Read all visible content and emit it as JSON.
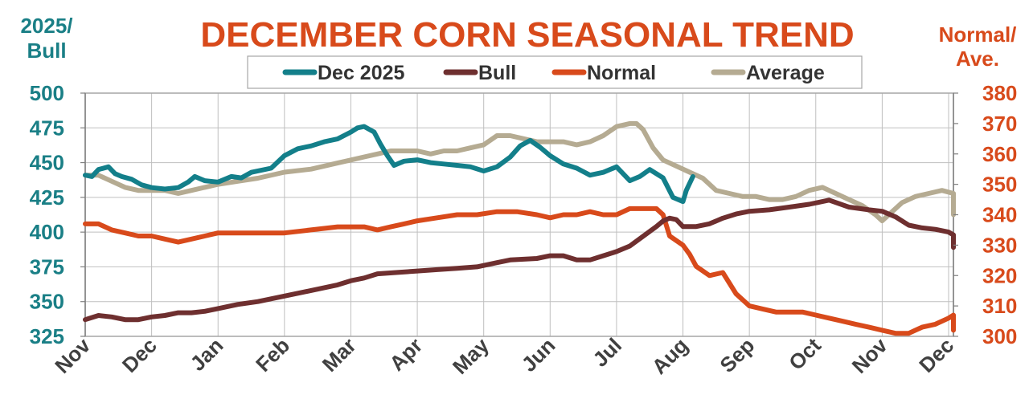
{
  "chart_data": {
    "type": "line",
    "title": "DECEMBER CORN SEASONAL TREND",
    "left_axis_title": [
      "2025/",
      "Bull"
    ],
    "right_axis_title": [
      "Normal/",
      "Ave."
    ],
    "left_ylim": [
      325,
      500
    ],
    "right_ylim": [
      300,
      380
    ],
    "left_ticks": [
      "500",
      "475",
      "450",
      "425",
      "400",
      "375",
      "350",
      "325"
    ],
    "right_ticks": [
      "380",
      "370",
      "360",
      "350",
      "340",
      "330",
      "320",
      "310",
      "300"
    ],
    "x_ticks": [
      "Nov",
      "Dec",
      "Jan",
      "Feb",
      "Mar",
      "Apr",
      "May",
      "Jun",
      "Jul",
      "Aug",
      "Sep",
      "Oct",
      "Nov",
      "Dec"
    ],
    "x_unit": "month index (0 = Nov start, 13 = Dec of following year)",
    "grid": true,
    "legend_position": "top",
    "colors": {
      "left_axis": "#1a7f86",
      "right_axis": "#d84a1b",
      "title": "#d84a1b",
      "grid": "#bfbfbf"
    },
    "series": [
      {
        "name": "Dec 2025",
        "axis": "left",
        "color": "#137f8a",
        "points": [
          [
            0,
            441
          ],
          [
            0.1,
            440
          ],
          [
            0.2,
            445
          ],
          [
            0.35,
            447
          ],
          [
            0.45,
            442
          ],
          [
            0.55,
            440
          ],
          [
            0.7,
            438
          ],
          [
            0.85,
            434
          ],
          [
            1.0,
            432
          ],
          [
            1.2,
            431
          ],
          [
            1.4,
            432
          ],
          [
            1.55,
            436
          ],
          [
            1.65,
            440
          ],
          [
            1.8,
            437
          ],
          [
            2.0,
            436
          ],
          [
            2.2,
            440
          ],
          [
            2.35,
            439
          ],
          [
            2.5,
            443
          ],
          [
            2.8,
            446
          ],
          [
            3.0,
            455
          ],
          [
            3.2,
            460
          ],
          [
            3.4,
            462
          ],
          [
            3.6,
            465
          ],
          [
            3.8,
            467
          ],
          [
            4.0,
            472
          ],
          [
            4.1,
            475
          ],
          [
            4.2,
            476
          ],
          [
            4.35,
            472
          ],
          [
            4.45,
            463
          ],
          [
            4.55,
            455
          ],
          [
            4.65,
            448
          ],
          [
            4.8,
            451
          ],
          [
            5.0,
            452
          ],
          [
            5.2,
            450
          ],
          [
            5.4,
            449
          ],
          [
            5.6,
            448
          ],
          [
            5.8,
            447
          ],
          [
            6.0,
            444
          ],
          [
            6.2,
            447
          ],
          [
            6.4,
            454
          ],
          [
            6.55,
            462
          ],
          [
            6.7,
            466
          ],
          [
            6.85,
            461
          ],
          [
            7.0,
            455
          ],
          [
            7.2,
            449
          ],
          [
            7.4,
            446
          ],
          [
            7.6,
            441
          ],
          [
            7.8,
            443
          ],
          [
            8.0,
            447
          ],
          [
            8.2,
            437
          ],
          [
            8.35,
            440
          ],
          [
            8.5,
            445
          ],
          [
            8.7,
            439
          ],
          [
            8.85,
            425
          ],
          [
            9.0,
            422
          ],
          [
            9.05,
            430
          ],
          [
            9.15,
            440
          ]
        ]
      },
      {
        "name": "Bull",
        "axis": "left",
        "color": "#6e2f2f",
        "points": [
          [
            0,
            337
          ],
          [
            0.2,
            340
          ],
          [
            0.4,
            339
          ],
          [
            0.6,
            337
          ],
          [
            0.8,
            337
          ],
          [
            1.0,
            339
          ],
          [
            1.2,
            340
          ],
          [
            1.4,
            342
          ],
          [
            1.6,
            342
          ],
          [
            1.8,
            343
          ],
          [
            2.0,
            345
          ],
          [
            2.3,
            348
          ],
          [
            2.6,
            350
          ],
          [
            3.0,
            354
          ],
          [
            3.4,
            358
          ],
          [
            3.8,
            362
          ],
          [
            4.0,
            365
          ],
          [
            4.2,
            367
          ],
          [
            4.4,
            370
          ],
          [
            4.7,
            371
          ],
          [
            5.0,
            372
          ],
          [
            5.3,
            373
          ],
          [
            5.6,
            374
          ],
          [
            5.9,
            375
          ],
          [
            6.0,
            376
          ],
          [
            6.2,
            378
          ],
          [
            6.4,
            380
          ],
          [
            6.8,
            381
          ],
          [
            7.0,
            383
          ],
          [
            7.2,
            383
          ],
          [
            7.4,
            380
          ],
          [
            7.6,
            380
          ],
          [
            7.8,
            383
          ],
          [
            8.0,
            386
          ],
          [
            8.2,
            390
          ],
          [
            8.4,
            397
          ],
          [
            8.6,
            404
          ],
          [
            8.7,
            408
          ],
          [
            8.8,
            410
          ],
          [
            8.9,
            409
          ],
          [
            9.0,
            404
          ],
          [
            9.2,
            404
          ],
          [
            9.4,
            406
          ],
          [
            9.6,
            410
          ],
          [
            9.8,
            413
          ],
          [
            10.0,
            415
          ],
          [
            10.3,
            416
          ],
          [
            10.6,
            418
          ],
          [
            10.9,
            420
          ],
          [
            11.2,
            423
          ],
          [
            11.5,
            418
          ],
          [
            11.8,
            416
          ],
          [
            12.0,
            415
          ],
          [
            12.2,
            411
          ],
          [
            12.4,
            405
          ],
          [
            12.6,
            403
          ],
          [
            12.8,
            402
          ],
          [
            13.0,
            400
          ],
          [
            13.2,
            398
          ],
          [
            13.4,
            395
          ],
          [
            13.6,
            393
          ],
          [
            13.8,
            392
          ],
          [
            14.0,
            390
          ],
          [
            14.2,
            389
          ]
        ]
      },
      {
        "name": "Normal",
        "axis": "right",
        "color": "#d84a1b",
        "points": [
          [
            0,
            337
          ],
          [
            0.2,
            337
          ],
          [
            0.4,
            335
          ],
          [
            0.6,
            334
          ],
          [
            0.8,
            333
          ],
          [
            1.0,
            333
          ],
          [
            1.2,
            332
          ],
          [
            1.4,
            331
          ],
          [
            1.6,
            332
          ],
          [
            1.8,
            333
          ],
          [
            2.0,
            334
          ],
          [
            2.3,
            334
          ],
          [
            2.6,
            334
          ],
          [
            3.0,
            334
          ],
          [
            3.4,
            335
          ],
          [
            3.8,
            336
          ],
          [
            4.0,
            336
          ],
          [
            4.2,
            336
          ],
          [
            4.4,
            335
          ],
          [
            4.6,
            336
          ],
          [
            4.8,
            337
          ],
          [
            5.0,
            338
          ],
          [
            5.3,
            339
          ],
          [
            5.6,
            340
          ],
          [
            5.9,
            340
          ],
          [
            6.2,
            341
          ],
          [
            6.5,
            341
          ],
          [
            6.8,
            340
          ],
          [
            7.0,
            339
          ],
          [
            7.2,
            340
          ],
          [
            7.4,
            340
          ],
          [
            7.6,
            341
          ],
          [
            7.8,
            340
          ],
          [
            8.0,
            340
          ],
          [
            8.2,
            342
          ],
          [
            8.4,
            342
          ],
          [
            8.6,
            342
          ],
          [
            8.7,
            340
          ],
          [
            8.8,
            333
          ],
          [
            9.0,
            330
          ],
          [
            9.1,
            327
          ],
          [
            9.2,
            323
          ],
          [
            9.4,
            320
          ],
          [
            9.6,
            321
          ],
          [
            9.8,
            314
          ],
          [
            10.0,
            310
          ],
          [
            10.2,
            309
          ],
          [
            10.4,
            308
          ],
          [
            10.6,
            308
          ],
          [
            10.8,
            308
          ],
          [
            11.0,
            307
          ],
          [
            11.2,
            306
          ],
          [
            11.4,
            305
          ],
          [
            11.6,
            304
          ],
          [
            11.8,
            303
          ],
          [
            12.0,
            302
          ],
          [
            12.2,
            301
          ],
          [
            12.4,
            301
          ],
          [
            12.6,
            303
          ],
          [
            12.8,
            304
          ],
          [
            13.0,
            306
          ],
          [
            13.2,
            307
          ],
          [
            13.4,
            307
          ],
          [
            13.6,
            306
          ],
          [
            13.8,
            304
          ],
          [
            14.0,
            303
          ],
          [
            14.2,
            302
          ]
        ]
      },
      {
        "name": "Average",
        "axis": "right",
        "color": "#b5ab92",
        "points": [
          [
            0,
            353
          ],
          [
            0.2,
            353
          ],
          [
            0.4,
            351
          ],
          [
            0.6,
            349
          ],
          [
            0.8,
            348
          ],
          [
            1.0,
            348
          ],
          [
            1.2,
            348
          ],
          [
            1.4,
            347
          ],
          [
            1.6,
            348
          ],
          [
            1.8,
            349
          ],
          [
            2.0,
            350
          ],
          [
            2.3,
            351
          ],
          [
            2.6,
            352
          ],
          [
            3.0,
            354
          ],
          [
            3.4,
            355
          ],
          [
            3.8,
            357
          ],
          [
            4.0,
            358
          ],
          [
            4.2,
            359
          ],
          [
            4.4,
            360
          ],
          [
            4.6,
            361
          ],
          [
            4.8,
            361
          ],
          [
            5.0,
            361
          ],
          [
            5.2,
            360
          ],
          [
            5.4,
            361
          ],
          [
            5.6,
            361
          ],
          [
            5.8,
            362
          ],
          [
            6.0,
            363
          ],
          [
            6.2,
            366
          ],
          [
            6.4,
            366
          ],
          [
            6.6,
            365
          ],
          [
            6.8,
            364
          ],
          [
            7.0,
            364
          ],
          [
            7.2,
            364
          ],
          [
            7.4,
            363
          ],
          [
            7.6,
            364
          ],
          [
            7.8,
            366
          ],
          [
            8.0,
            369
          ],
          [
            8.2,
            370
          ],
          [
            8.3,
            370
          ],
          [
            8.4,
            368
          ],
          [
            8.55,
            362
          ],
          [
            8.7,
            358
          ],
          [
            8.9,
            356
          ],
          [
            9.1,
            354
          ],
          [
            9.3,
            352
          ],
          [
            9.5,
            348
          ],
          [
            9.7,
            347
          ],
          [
            9.9,
            346
          ],
          [
            10.1,
            346
          ],
          [
            10.3,
            345
          ],
          [
            10.5,
            345
          ],
          [
            10.7,
            346
          ],
          [
            10.9,
            348
          ],
          [
            11.1,
            349
          ],
          [
            11.3,
            347
          ],
          [
            11.5,
            345
          ],
          [
            11.7,
            343
          ],
          [
            11.9,
            340
          ],
          [
            12.0,
            338
          ],
          [
            12.1,
            340
          ],
          [
            12.3,
            344
          ],
          [
            12.5,
            346
          ],
          [
            12.7,
            347
          ],
          [
            12.9,
            348
          ],
          [
            13.1,
            347
          ],
          [
            13.3,
            345
          ],
          [
            13.5,
            343
          ],
          [
            13.7,
            342
          ],
          [
            13.9,
            341
          ],
          [
            14.1,
            340
          ],
          [
            14.2,
            340
          ]
        ]
      }
    ]
  }
}
